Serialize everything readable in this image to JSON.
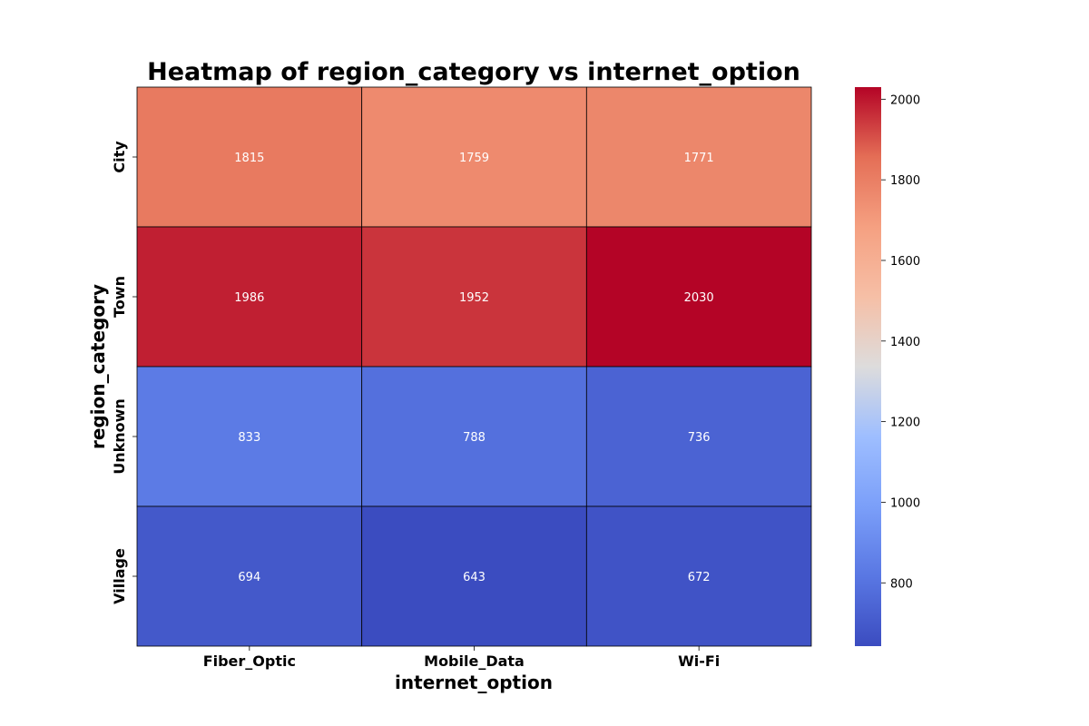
{
  "chart_data": {
    "type": "heatmap",
    "title": "Heatmap of region_category vs internet_option",
    "xlabel": "internet_option",
    "ylabel": "region_category",
    "x_categories": [
      "Fiber_Optic",
      "Mobile_Data",
      "Wi-Fi"
    ],
    "y_categories": [
      "City",
      "Town",
      "Unknown",
      "Village"
    ],
    "values": [
      [
        1815,
        1759,
        1771
      ],
      [
        1986,
        1952,
        2030
      ],
      [
        833,
        788,
        736
      ],
      [
        694,
        643,
        672
      ]
    ],
    "colormap": "coolwarm",
    "color_range": [
      643,
      2030
    ],
    "colorbar_ticks": [
      800,
      1000,
      1200,
      1400,
      1600,
      1800,
      2000
    ],
    "colorbar_tick_labels": [
      "800",
      "1000",
      "1200",
      "1400",
      "1600",
      "1800",
      "2000"
    ],
    "cell_border_color": "#000000",
    "annotation_color": "#ffffff"
  }
}
